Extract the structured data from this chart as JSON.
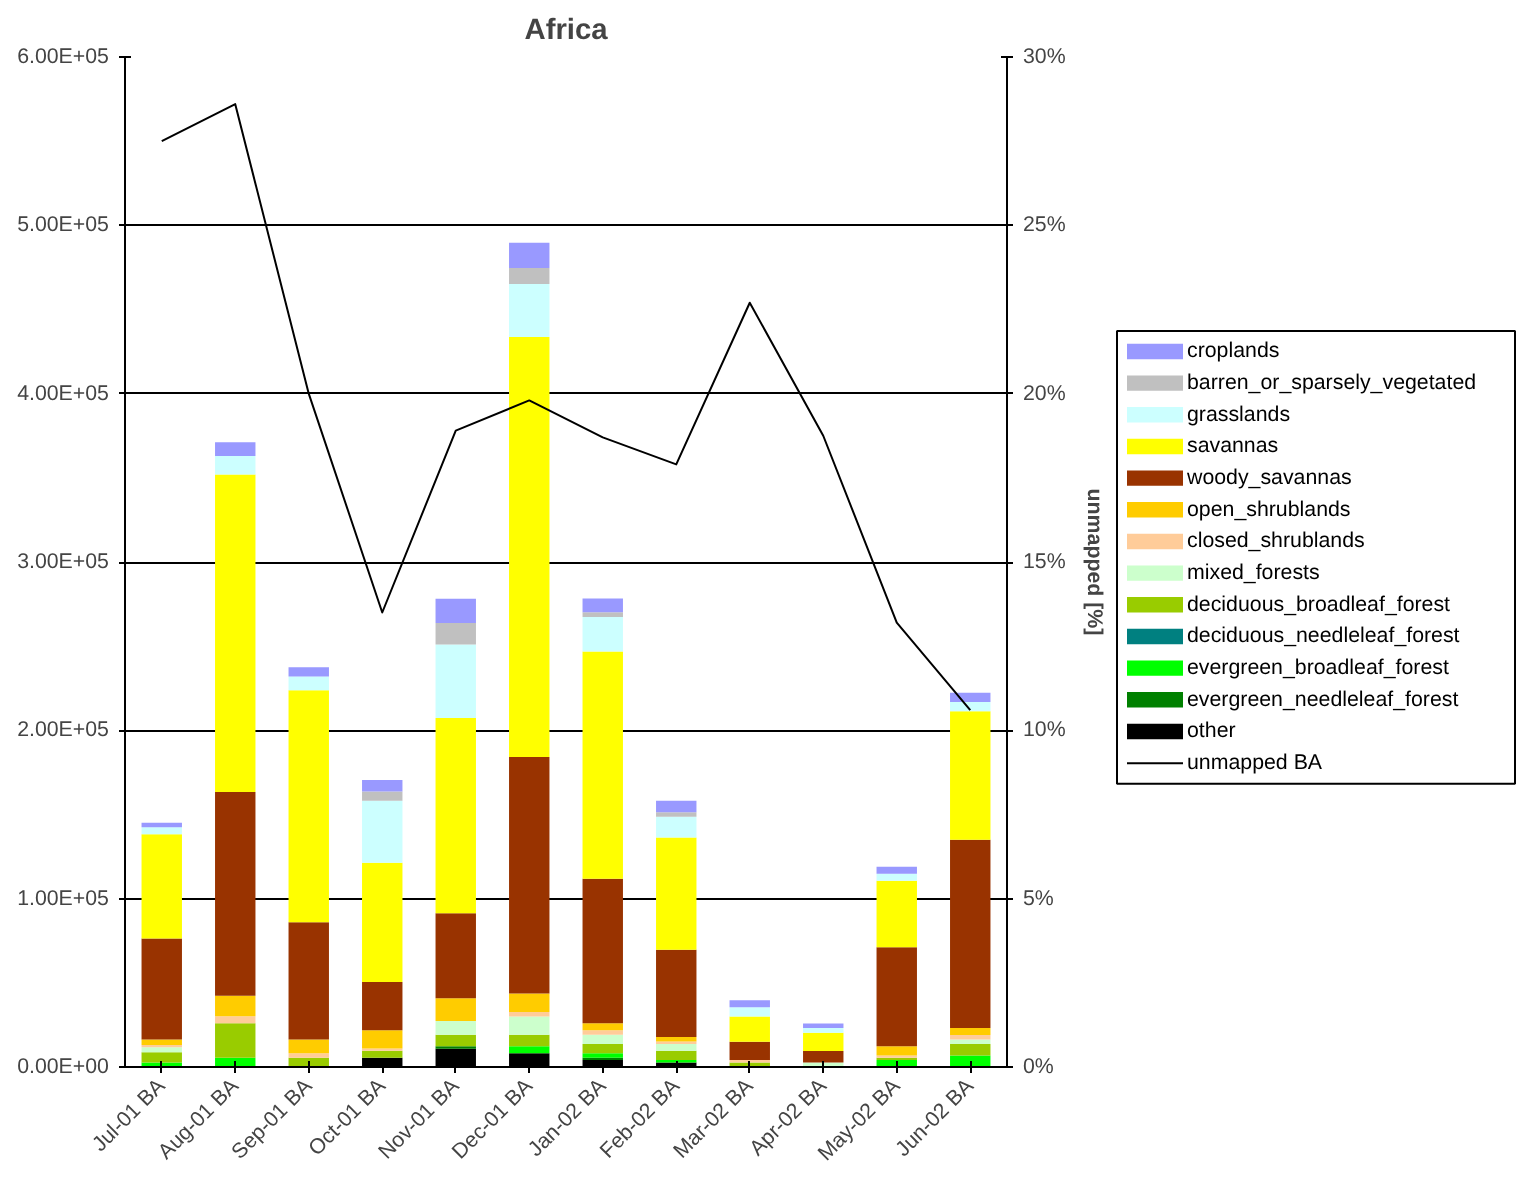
{
  "chart_data": {
    "type": "bar",
    "stacked": true,
    "title": "Africa",
    "y2label": "unmapped [%]",
    "categories": [
      "Jul-01 BA",
      "Aug-01 BA",
      "Sep-01 BA",
      "Oct-01 BA",
      "Nov-01 BA",
      "Dec-01 BA",
      "Jan-02 BA",
      "Feb-02 BA",
      "Mar-02 BA",
      "Apr-02 BA",
      "May-02 BA",
      "Jun-02 BA"
    ],
    "ylim": [
      0,
      600000
    ],
    "yticks": [
      {
        "value": 0,
        "label": "0.00E+00"
      },
      {
        "value": 100000,
        "label": "1.00E+05"
      },
      {
        "value": 200000,
        "label": "2.00E+05"
      },
      {
        "value": 300000,
        "label": "3.00E+05"
      },
      {
        "value": 400000,
        "label": "4.00E+05"
      },
      {
        "value": 500000,
        "label": "5.00E+05"
      },
      {
        "value": 600000,
        "label": "6.00E+05"
      }
    ],
    "y2lim": [
      0,
      30
    ],
    "y2ticks": [
      {
        "value": 0,
        "label": "0%"
      },
      {
        "value": 5,
        "label": "5%"
      },
      {
        "value": 10,
        "label": "10%"
      },
      {
        "value": 15,
        "label": "15%"
      },
      {
        "value": 20,
        "label": "20%"
      },
      {
        "value": 25,
        "label": "25%"
      },
      {
        "value": 30,
        "label": "30%"
      }
    ],
    "grid": "y",
    "legend": "right",
    "series": [
      {
        "name": "other",
        "color": "#000000",
        "values": [
          null,
          null,
          null,
          5500,
          10900,
          8200,
          4100,
          2700,
          null,
          null,
          null,
          null
        ]
      },
      {
        "name": "evergreen_needleleaf_forest",
        "color": "#008000",
        "values": [
          null,
          null,
          null,
          null,
          1400,
          null,
          1400,
          null,
          null,
          null,
          null,
          null
        ]
      },
      {
        "name": "evergreen_broadleaf_forest",
        "color": "#00ff00",
        "values": [
          2700,
          5500,
          null,
          null,
          null,
          4100,
          2700,
          1400,
          null,
          null,
          4100,
          6800
        ]
      },
      {
        "name": "deciduous_needleleaf_forest",
        "color": "#008080",
        "values": [
          null,
          null,
          null,
          null,
          null,
          null,
          null,
          null,
          null,
          null,
          null,
          null
        ]
      },
      {
        "name": "deciduous_broadleaf_forest",
        "color": "#99cc00",
        "values": [
          6000,
          20500,
          5500,
          4100,
          6800,
          6800,
          5500,
          5500,
          2700,
          null,
          1400,
          6800
        ]
      },
      {
        "name": "mixed_forests",
        "color": "#ccffcc",
        "values": [
          3000,
          null,
          null,
          null,
          8200,
          10900,
          5500,
          4100,
          null,
          2700,
          null,
          2700
        ]
      },
      {
        "name": "closed_shrublands",
        "color": "#ffcc99",
        "values": [
          1400,
          4100,
          2700,
          1400,
          null,
          2700,
          2700,
          1400,
          1400,
          null,
          1400,
          2700
        ]
      },
      {
        "name": "open_shrublands",
        "color": "#ffcc00",
        "values": [
          3200,
          12300,
          8200,
          10900,
          13600,
          10900,
          4100,
          2700,
          null,
          null,
          5500,
          4100
        ]
      },
      {
        "name": "woody_savannas",
        "color": "#993300",
        "values": [
          60000,
          121000,
          69600,
          28600,
          50500,
          140500,
          85900,
          51800,
          10900,
          6800,
          58700,
          111900
        ]
      },
      {
        "name": "savannas",
        "color": "#ffff00",
        "values": [
          62000,
          188600,
          137800,
          70900,
          116000,
          249600,
          135000,
          66800,
          15000,
          10900,
          39600,
          76400
        ]
      },
      {
        "name": "grasslands",
        "color": "#ccffff",
        "values": [
          4100,
          10900,
          8200,
          36800,
          43600,
          31400,
          20500,
          12300,
          5500,
          2700,
          4100,
          5500
        ]
      },
      {
        "name": "barren_or_sparsely_vegetated",
        "color": "#c0c0c0",
        "values": [
          null,
          null,
          null,
          5500,
          12700,
          9500,
          2700,
          2700,
          null,
          null,
          null,
          null
        ]
      },
      {
        "name": "croplands",
        "color": "#9999ff",
        "values": [
          2700,
          8200,
          5500,
          6800,
          14500,
          15000,
          8200,
          6800,
          4100,
          2700,
          4100,
          5500
        ]
      },
      {
        "name": "unmapped BA",
        "type": "line",
        "axis": "y2",
        "color": "#000000",
        "values": [
          27.5,
          28.6,
          20.0,
          13.5,
          18.9,
          19.8,
          18.7,
          17.9,
          22.7,
          18.75,
          13.2,
          10.6
        ]
      }
    ]
  }
}
